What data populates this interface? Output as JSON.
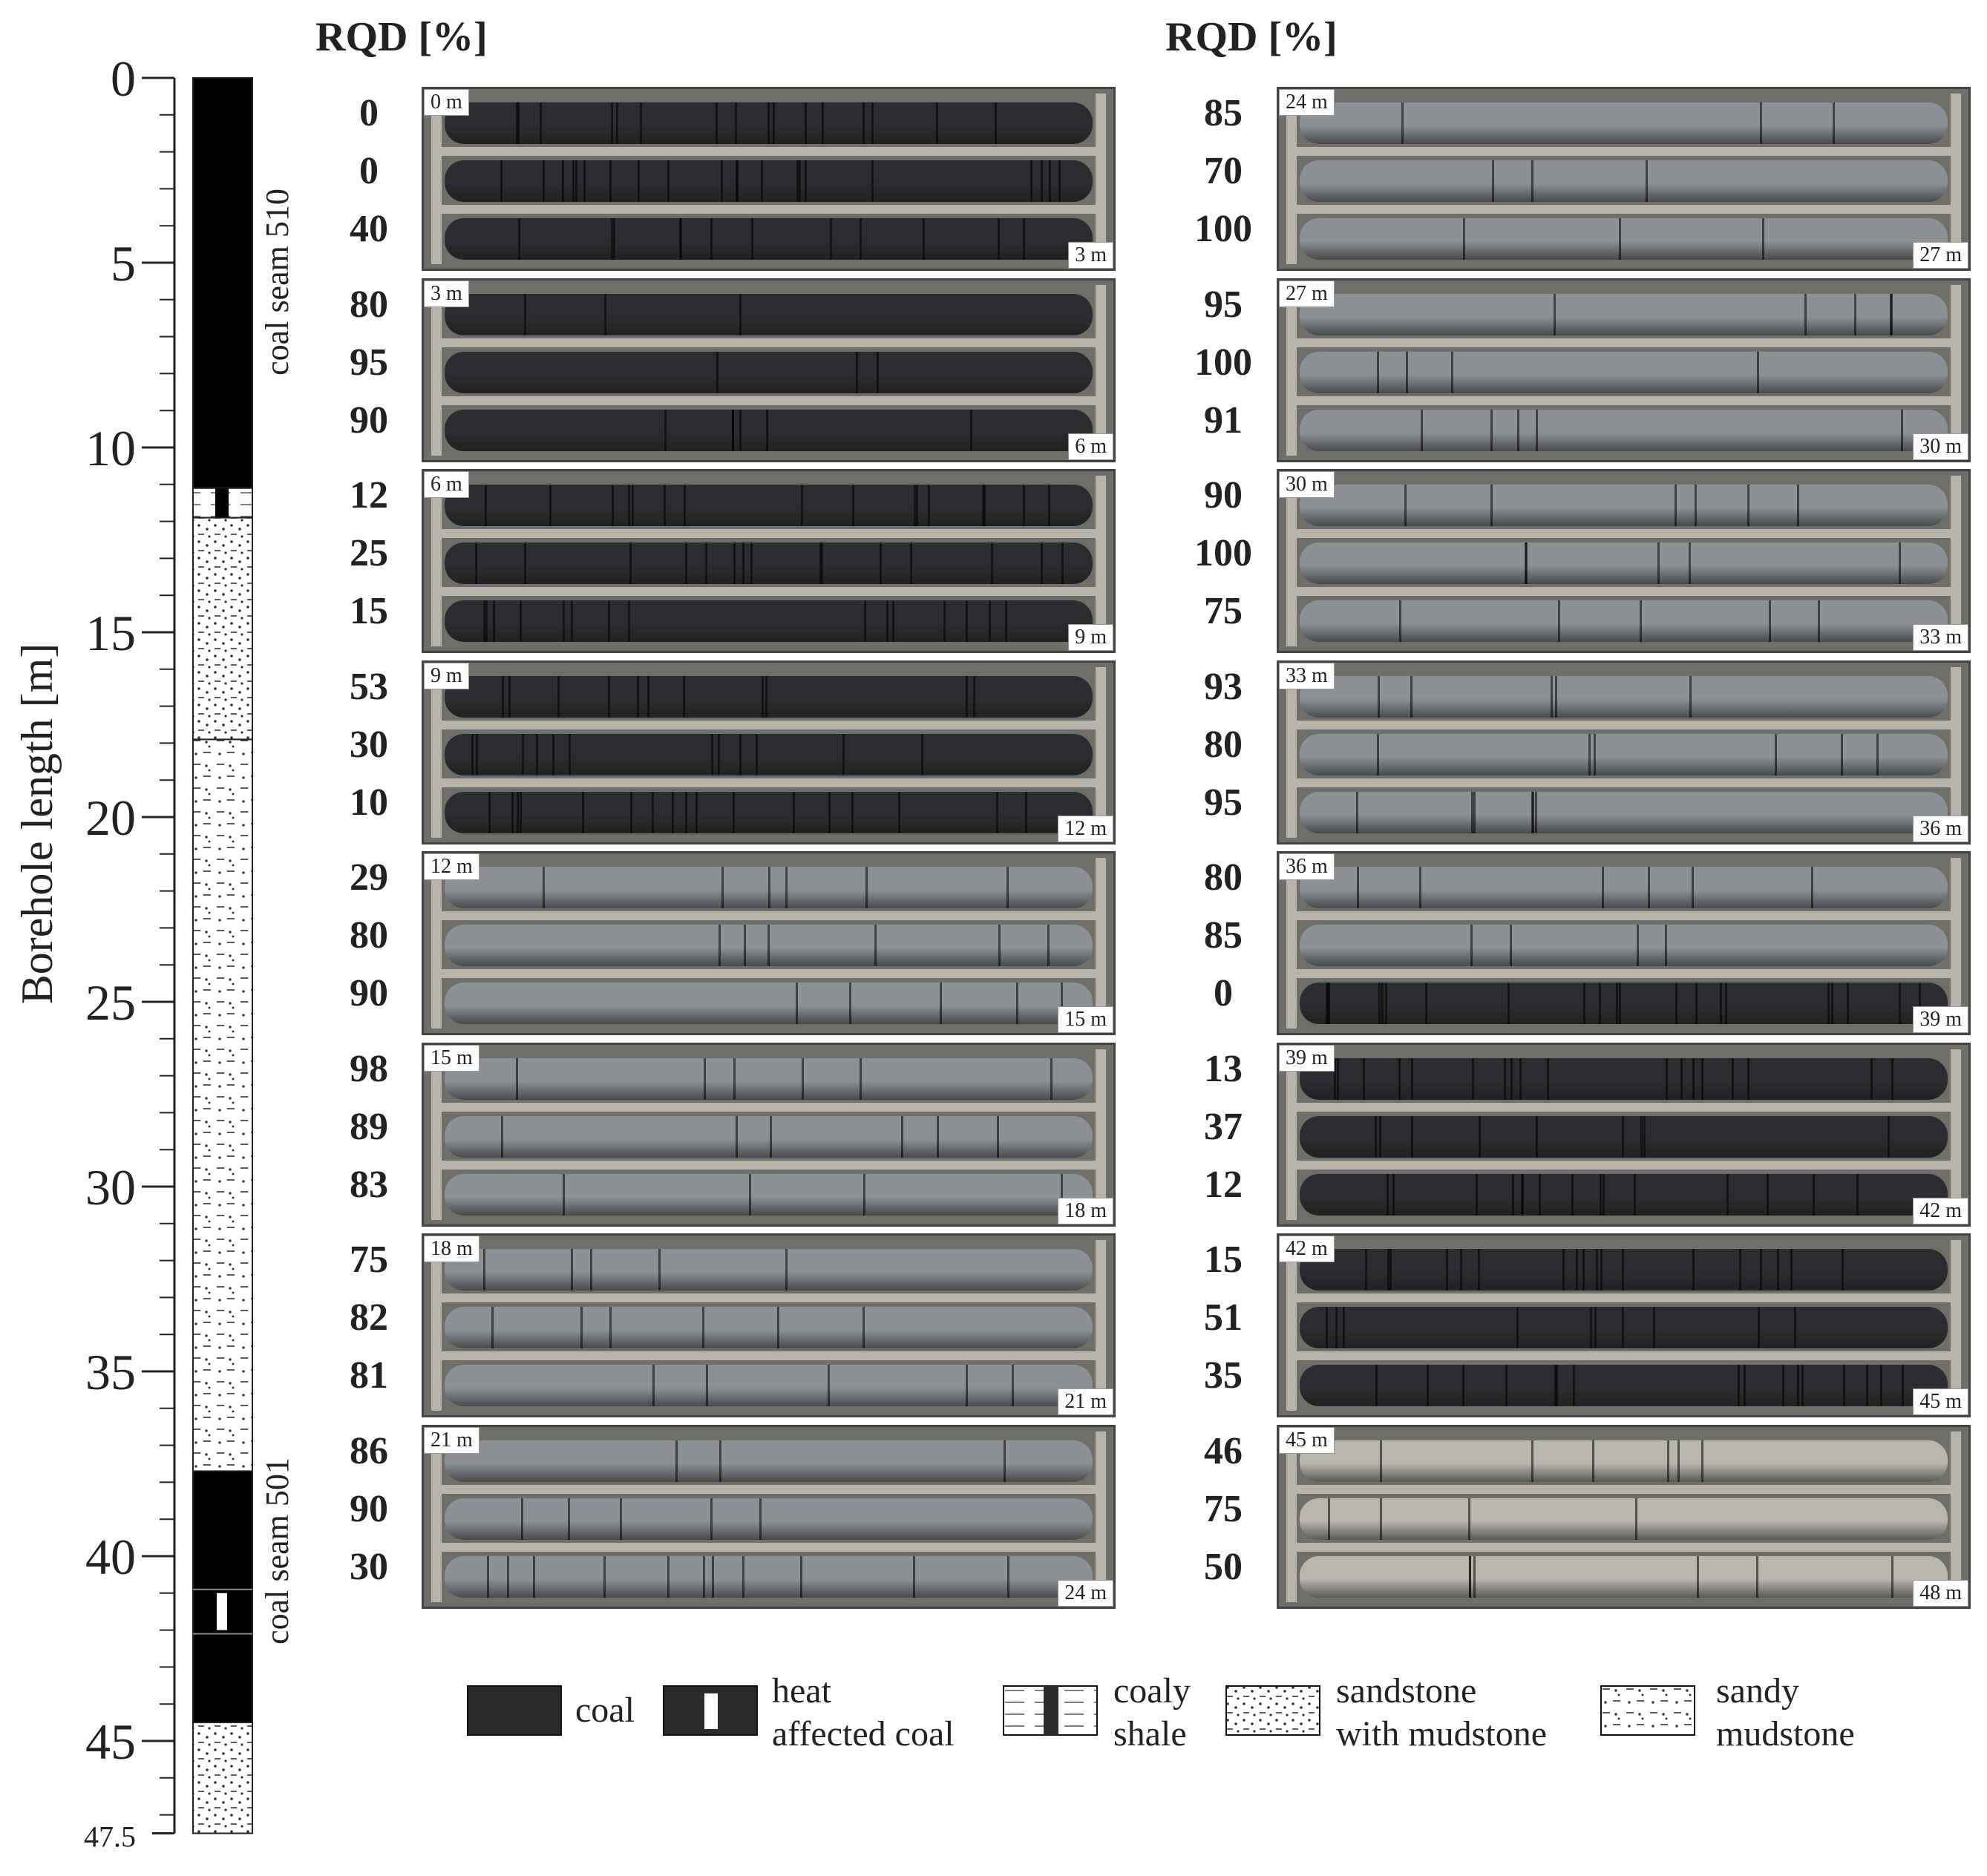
{
  "column": {
    "axis_title": "Borehole length [m]",
    "ticks": [
      "0",
      "5",
      "10",
      "15",
      "20",
      "25",
      "30",
      "35",
      "40",
      "45",
      "47.5"
    ],
    "seam_upper": "coal seam 510",
    "seam_lower": "coal seam 501"
  },
  "headers": {
    "left": "RQD [%]",
    "right": "RQD [%]"
  },
  "boxes_left": [
    {
      "start": "0 m",
      "end": "3 m",
      "rqd": [
        "0",
        "0",
        "40"
      ],
      "tone": "coal",
      "rubble": [
        2,
        3,
        1
      ]
    },
    {
      "start": "3 m",
      "end": "6 m",
      "rqd": [
        "80",
        "95",
        "90"
      ],
      "tone": "coal",
      "rubble": [
        0,
        0,
        0
      ]
    },
    {
      "start": "6 m",
      "end": "9 m",
      "rqd": [
        "12",
        "25",
        "15"
      ],
      "tone": "coal",
      "rubble": [
        2,
        2,
        2
      ]
    },
    {
      "start": "9 m",
      "end": "12 m",
      "rqd": [
        "53",
        "30",
        "10"
      ],
      "tone": "coal",
      "rubble": [
        1,
        1,
        2
      ]
    },
    {
      "start": "12 m",
      "end": "15 m",
      "rqd": [
        "29",
        "80",
        "90"
      ],
      "tone": "light",
      "rubble": [
        0,
        0,
        0
      ]
    },
    {
      "start": "15 m",
      "end": "18 m",
      "rqd": [
        "98",
        "89",
        "83"
      ],
      "tone": "light",
      "rubble": [
        0,
        0,
        0
      ]
    },
    {
      "start": "18 m",
      "end": "21 m",
      "rqd": [
        "75",
        "82",
        "81"
      ],
      "tone": "light",
      "rubble": [
        0,
        0,
        0
      ]
    },
    {
      "start": "21 m",
      "end": "24 m",
      "rqd": [
        "86",
        "90",
        "30"
      ],
      "tone": "light",
      "rubble": [
        0,
        0,
        1
      ]
    }
  ],
  "boxes_right": [
    {
      "start": "24 m",
      "end": "27 m",
      "rqd": [
        "85",
        "70",
        "100"
      ],
      "tone": "light",
      "rubble": [
        0,
        0,
        0
      ]
    },
    {
      "start": "27 m",
      "end": "30 m",
      "rqd": [
        "95",
        "100",
        "91"
      ],
      "tone": "light",
      "rubble": [
        0,
        0,
        0
      ]
    },
    {
      "start": "30 m",
      "end": "33 m",
      "rqd": [
        "90",
        "100",
        "75"
      ],
      "tone": "light",
      "rubble": [
        0,
        0,
        0
      ]
    },
    {
      "start": "33 m",
      "end": "36 m",
      "rqd": [
        "93",
        "80",
        "95"
      ],
      "tone": "light",
      "rubble": [
        0,
        0,
        0
      ]
    },
    {
      "start": "36 m",
      "end": "39 m",
      "rqd": [
        "80",
        "85",
        "0"
      ],
      "tone": "mixed",
      "rubble": [
        0,
        0,
        3
      ]
    },
    {
      "start": "39 m",
      "end": "42 m",
      "rqd": [
        "13",
        "37",
        "12"
      ],
      "tone": "coal",
      "rubble": [
        2,
        1,
        2
      ]
    },
    {
      "start": "42 m",
      "end": "45 m",
      "rqd": [
        "15",
        "51",
        "35"
      ],
      "tone": "coal",
      "rubble": [
        2,
        1,
        2
      ]
    },
    {
      "start": "45 m",
      "end": "48 m",
      "rqd": [
        "46",
        "75",
        "50"
      ],
      "tone": "pale",
      "rubble": [
        0,
        0,
        0
      ]
    }
  ],
  "legend": [
    {
      "key": "coal",
      "label": "coal"
    },
    {
      "key": "heat",
      "label": "heat\naffected coal"
    },
    {
      "key": "coaly",
      "label": "coaly\nshale"
    },
    {
      "key": "sandstone",
      "label": "sandstone\nwith mudstone"
    },
    {
      "key": "sandy",
      "label": "sandy\nmudstone"
    }
  ],
  "colors": {
    "coal": "#111111",
    "tray_coal": "#2c2d30",
    "tray_light": "#8d9196",
    "tray_pale": "#b9b6ae",
    "tray_mixed": "#6f7378"
  }
}
